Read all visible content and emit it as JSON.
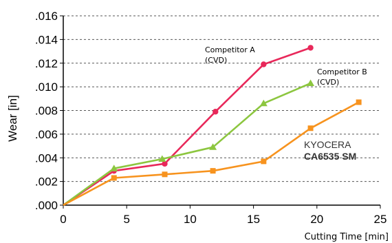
{
  "chart_data": {
    "type": "line",
    "xlabel": "Cutting Time [min]",
    "ylabel": "Wear [in]",
    "xlim": [
      0,
      25
    ],
    "ylim": [
      0,
      0.016
    ],
    "x_ticks": [
      0,
      5,
      10,
      15,
      20,
      25
    ],
    "x_tick_labels": [
      "0",
      "5",
      "10",
      "15",
      "20",
      "25"
    ],
    "y_ticks": [
      0,
      0.002,
      0.004,
      0.006,
      0.008,
      0.01,
      0.012,
      0.014,
      0.016
    ],
    "y_tick_labels": [
      ".000",
      ".002",
      ".004",
      ".006",
      ".008",
      ".010",
      ".012",
      ".014",
      ".016"
    ],
    "grid": "horizontal-dashed",
    "series": [
      {
        "color": "#e8285a",
        "marker": "circle",
        "x": [
          0,
          4,
          8,
          12,
          15.8,
          19.5
        ],
        "y": [
          0.0,
          0.0029,
          0.0035,
          0.0079,
          0.0119,
          0.0133
        ],
        "label_lines": [
          "Competitor A",
          "(CVD)"
        ]
      },
      {
        "color": "#8cc63f",
        "marker": "triangle",
        "x": [
          0,
          4,
          7.8,
          11.8,
          15.8,
          19.5
        ],
        "y": [
          0.0,
          0.0031,
          0.0039,
          0.0049,
          0.0086,
          0.0103
        ],
        "label_lines": [
          "Competitor B",
          "(CVD)"
        ]
      },
      {
        "color": "#f7931e",
        "marker": "square",
        "x": [
          0,
          4,
          8,
          11.8,
          15.8,
          19.5,
          23.3
        ],
        "y": [
          0.0,
          0.0023,
          0.0026,
          0.0029,
          0.0037,
          0.0065,
          0.0087
        ],
        "label_lines": [
          "KYOCERA",
          "CA6535 SM"
        ]
      }
    ]
  }
}
